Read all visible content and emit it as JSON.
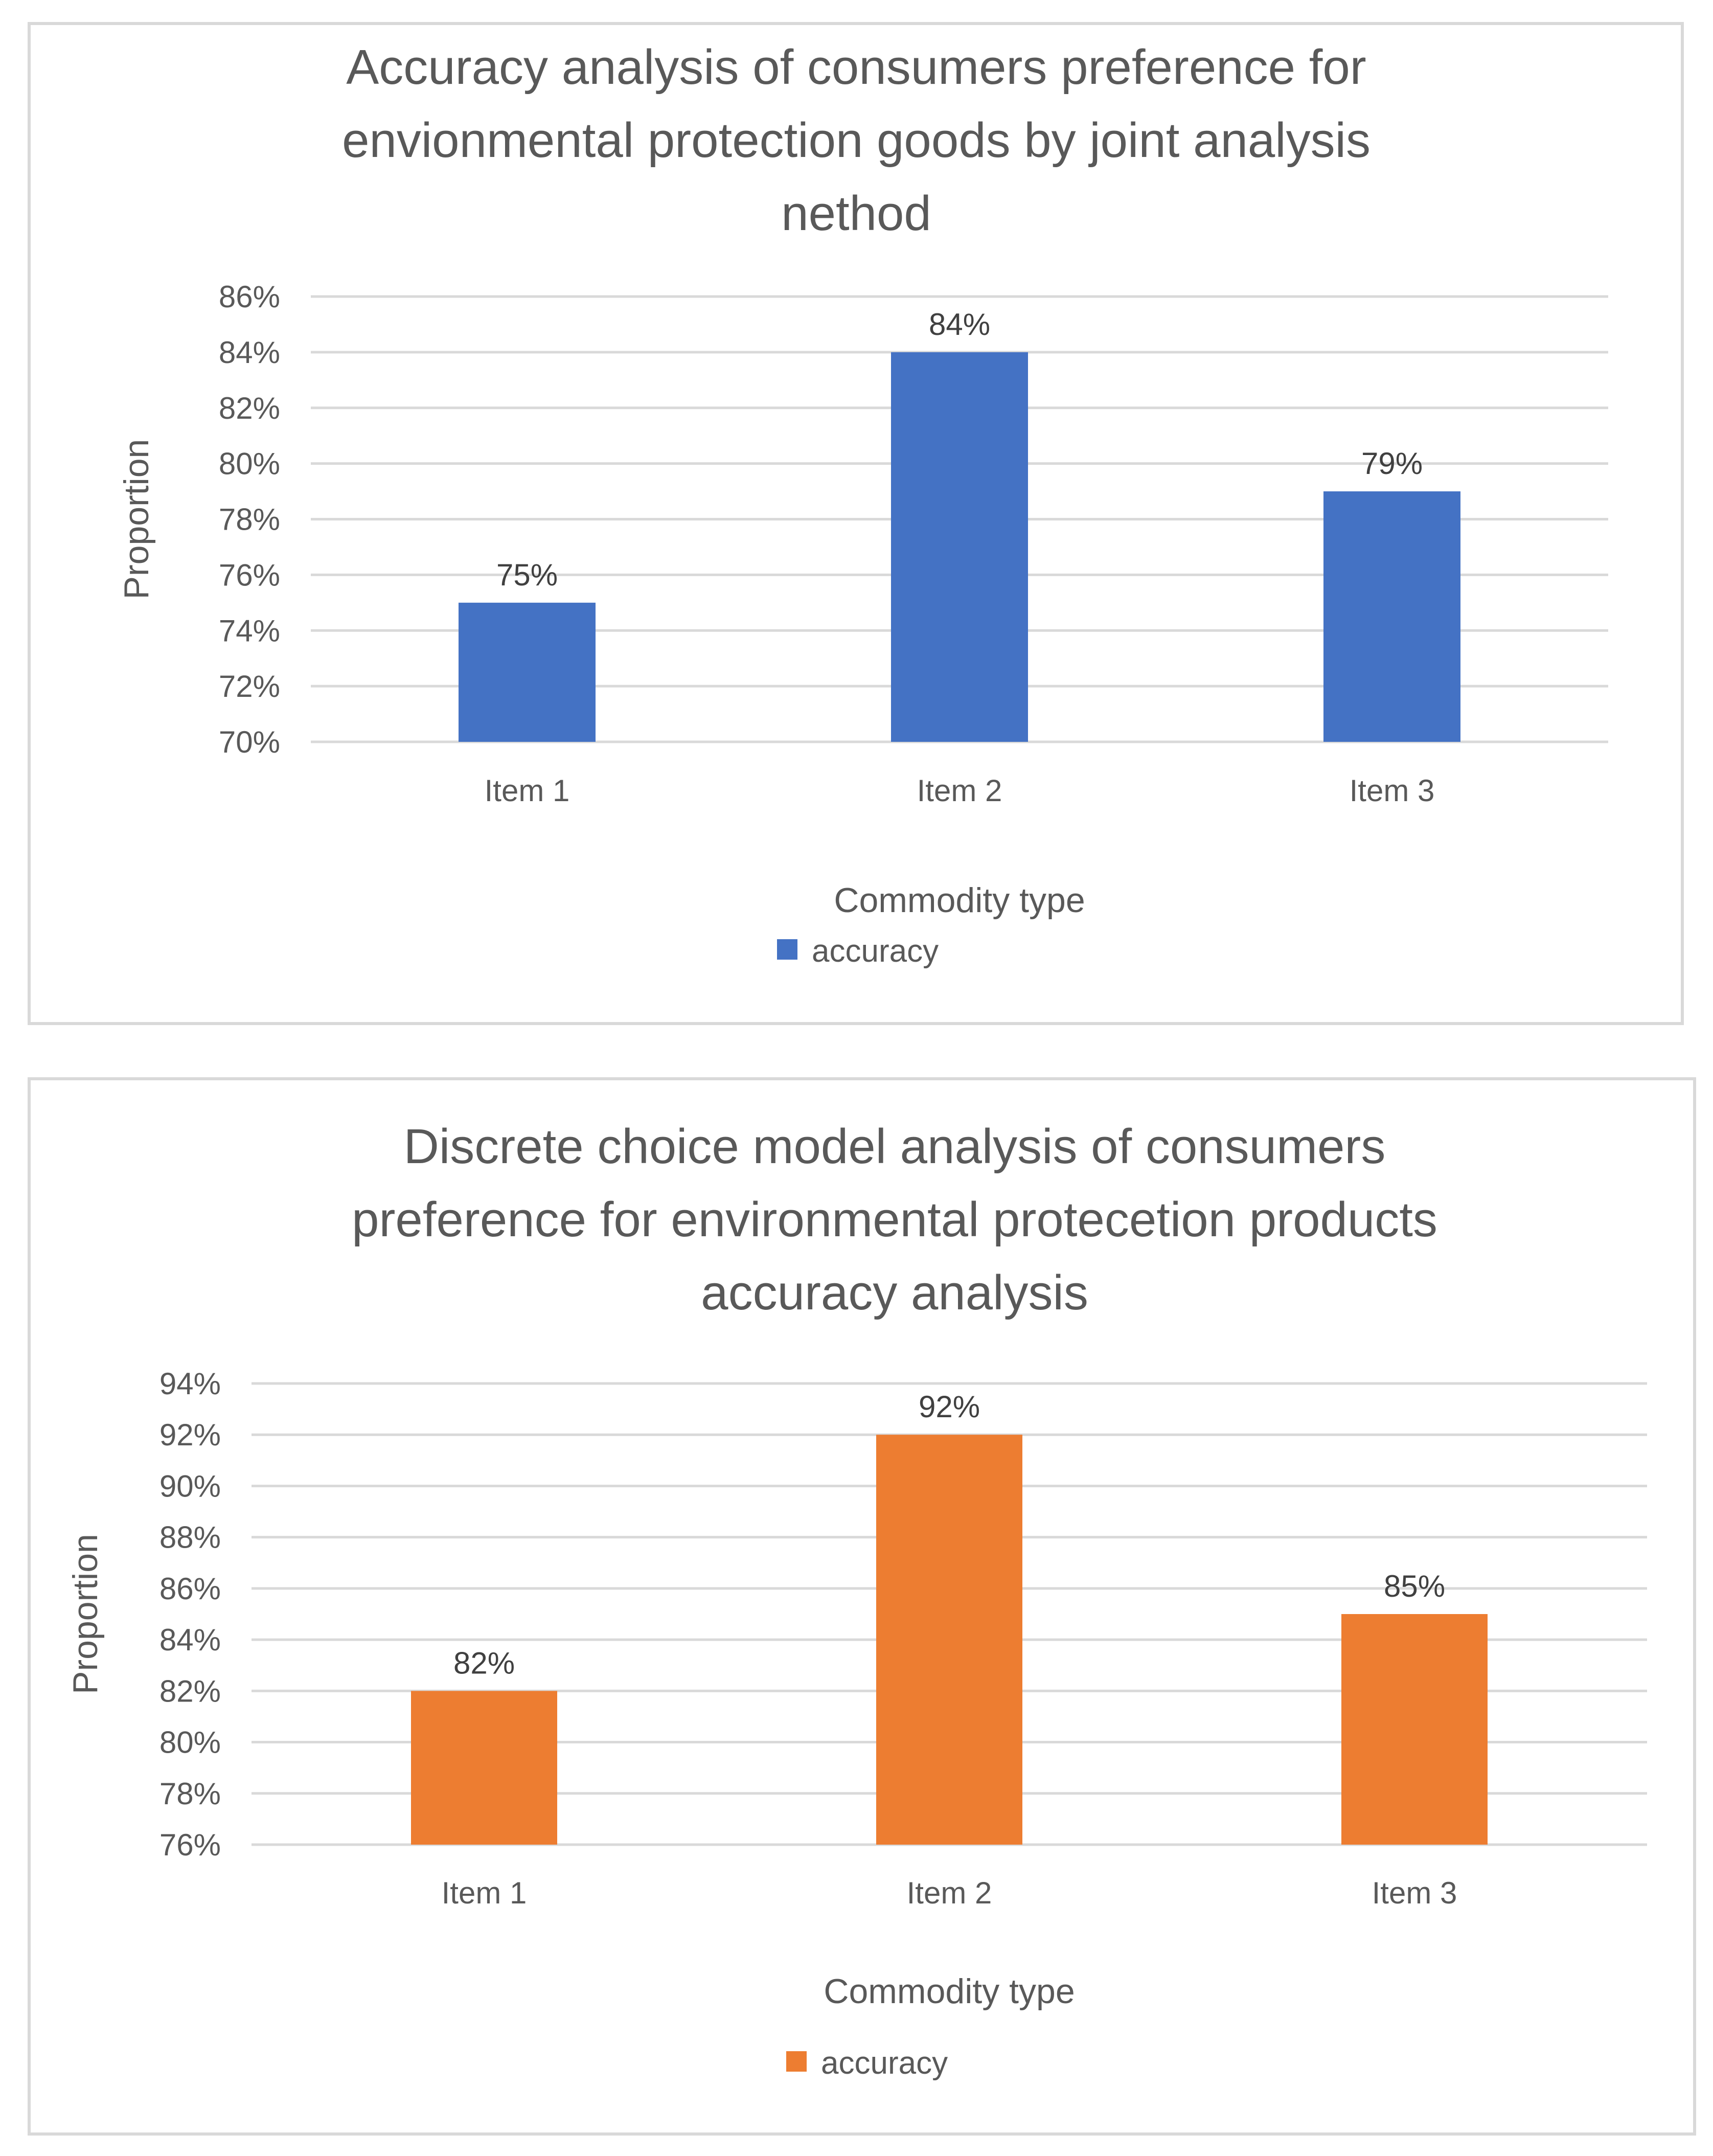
{
  "chart_data": [
    {
      "type": "bar",
      "title": "Accuracy analysis of consumers preference for envionmental protection goods by joint analysis nethod",
      "title_lines": [
        "Accuracy analysis of consumers preference for",
        "envionmental protection goods by joint analysis",
        "nethod"
      ],
      "categories": [
        "Item 1",
        "Item 2",
        "Item 3"
      ],
      "series": [
        {
          "name": "accuracy",
          "values": [
            75,
            84,
            79
          ],
          "labels": [
            "75%",
            "84%",
            "79%"
          ],
          "color": "#4472C4"
        }
      ],
      "xlabel": "Commodity type",
      "ylabel": "Proportion",
      "ylim": [
        70,
        86
      ],
      "ytick_labels": [
        "70%",
        "72%",
        "74%",
        "76%",
        "78%",
        "80%",
        "82%",
        "84%",
        "86%"
      ],
      "grid": true,
      "legend_position": "bottom"
    },
    {
      "type": "bar",
      "title": "Discrete choice model analysis of consumers preference for environmental protecetion products accuracy analysis",
      "title_lines": [
        "Discrete choice model analysis of consumers",
        "preference for environmental protecetion products",
        "accuracy analysis"
      ],
      "categories": [
        "Item 1",
        "Item 2",
        "Item 3"
      ],
      "series": [
        {
          "name": "accuracy",
          "values": [
            82,
            92,
            85
          ],
          "labels": [
            "82%",
            "92%",
            "85%"
          ],
          "color": "#ED7D31"
        }
      ],
      "xlabel": "Commodity type",
      "ylabel": "Proportion",
      "ylim": [
        76,
        94
      ],
      "ytick_labels": [
        "76%",
        "78%",
        "80%",
        "82%",
        "84%",
        "86%",
        "88%",
        "90%",
        "92%",
        "94%"
      ],
      "grid": true,
      "legend_position": "bottom"
    }
  ]
}
